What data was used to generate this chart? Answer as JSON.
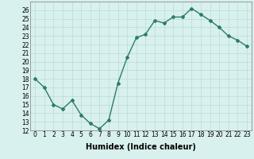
{
  "x": [
    0,
    1,
    2,
    3,
    4,
    5,
    6,
    7,
    8,
    9,
    10,
    11,
    12,
    13,
    14,
    15,
    16,
    17,
    18,
    19,
    20,
    21,
    22,
    23
  ],
  "y": [
    18,
    17,
    15,
    14.5,
    15.5,
    13.8,
    12.8,
    12.2,
    13.2,
    17.5,
    20.5,
    22.8,
    23.2,
    24.8,
    24.5,
    25.2,
    25.2,
    26.2,
    25.5,
    24.8,
    24,
    23,
    22.5,
    21.8
  ],
  "line_color": "#2d7a6e",
  "marker": "D",
  "marker_size": 2,
  "bg_color": "#d8f0ee",
  "grid_color": "#b8dcd8",
  "xlabel": "Humidex (Indice chaleur)",
  "xlim": [
    -0.5,
    23.5
  ],
  "ylim": [
    12,
    27
  ],
  "yticks": [
    12,
    13,
    14,
    15,
    16,
    17,
    18,
    19,
    20,
    21,
    22,
    23,
    24,
    25,
    26
  ],
  "xticks": [
    0,
    1,
    2,
    3,
    4,
    5,
    6,
    7,
    8,
    9,
    10,
    11,
    12,
    13,
    14,
    15,
    16,
    17,
    18,
    19,
    20,
    21,
    22,
    23
  ],
  "tick_fontsize": 5.5,
  "xlabel_fontsize": 7,
  "linewidth": 1.0
}
